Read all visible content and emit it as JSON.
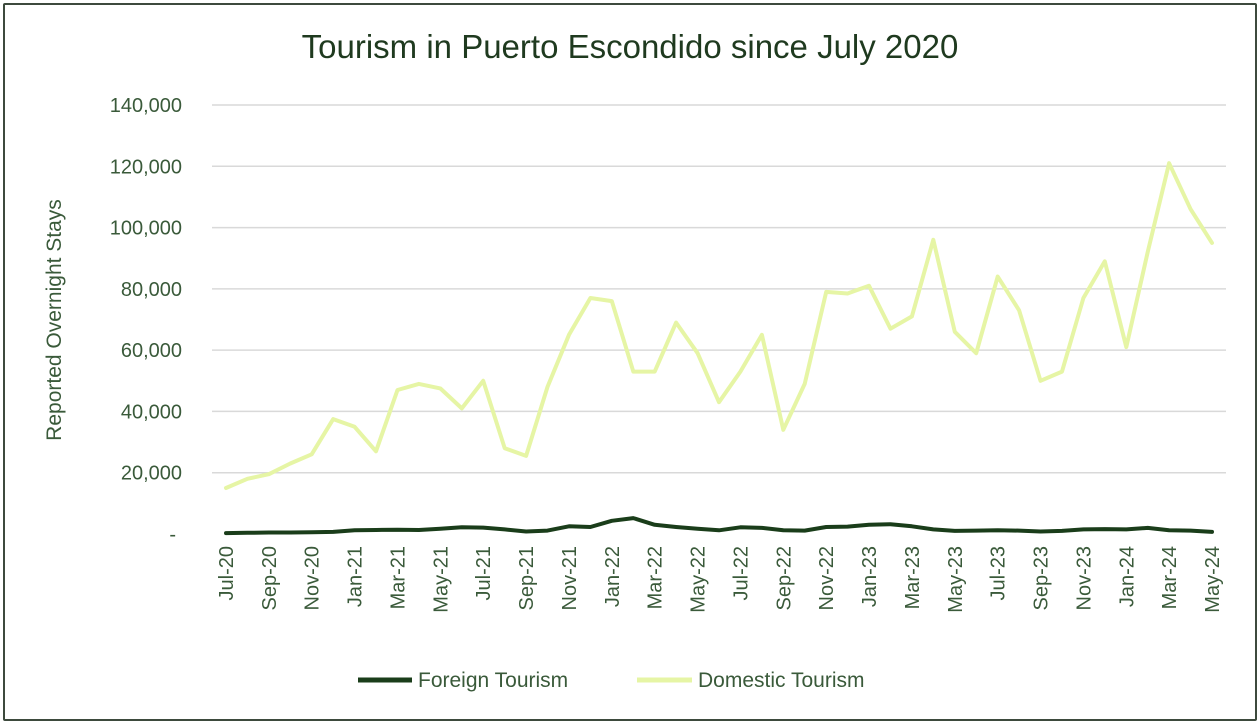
{
  "chart_data": {
    "type": "line",
    "title": "Tourism in Puerto Escondido since July 2020",
    "xlabel": "",
    "ylabel": "Reported Overnight Stays",
    "ylim": [
      0,
      140000
    ],
    "yticks": [
      "-",
      "20,000",
      "40,000",
      "60,000",
      "80,000",
      "100,000",
      "120,000",
      "140,000"
    ],
    "grid": true,
    "legend_position": "bottom",
    "categories": [
      "Jul-20",
      "Aug-20",
      "Sep-20",
      "Oct-20",
      "Nov-20",
      "Dec-20",
      "Jan-21",
      "Feb-21",
      "Mar-21",
      "Apr-21",
      "May-21",
      "Jun-21",
      "Jul-21",
      "Aug-21",
      "Sep-21",
      "Oct-21",
      "Nov-21",
      "Dec-21",
      "Jan-22",
      "Feb-22",
      "Mar-22",
      "Apr-22",
      "May-22",
      "Jun-22",
      "Jul-22",
      "Aug-22",
      "Sep-22",
      "Oct-22",
      "Nov-22",
      "Dec-22",
      "Jan-23",
      "Feb-23",
      "Mar-23",
      "Apr-23",
      "May-23",
      "Jun-23",
      "Jul-23",
      "Aug-23",
      "Sep-23",
      "Oct-23",
      "Nov-23",
      "Dec-23",
      "Jan-24",
      "Feb-24",
      "Mar-24",
      "Apr-24",
      "May-24"
    ],
    "tick_labels": [
      "Jul-20",
      "Sep-20",
      "Nov-20",
      "Jan-21",
      "Mar-21",
      "May-21",
      "Jul-21",
      "Sep-21",
      "Nov-21",
      "Jan-22",
      "Mar-22",
      "May-22",
      "Jul-22",
      "Sep-22",
      "Nov-22",
      "Jan-23",
      "Mar-23",
      "May-23",
      "Jul-23",
      "Sep-23",
      "Nov-23",
      "Jan-24",
      "Mar-24",
      "May-24"
    ],
    "series": [
      {
        "name": "Foreign Tourism",
        "color": "#1a3d1a",
        "values": [
          300,
          400,
          500,
          500,
          600,
          700,
          1200,
          1300,
          1400,
          1300,
          1700,
          2200,
          2100,
          1500,
          800,
          1100,
          2500,
          2300,
          4300,
          5200,
          3000,
          2300,
          1700,
          1200,
          2200,
          2000,
          1200,
          1100,
          2300,
          2400,
          3000,
          3200,
          2500,
          1500,
          1000,
          1100,
          1200,
          1100,
          800,
          1000,
          1500,
          1600,
          1500,
          2000,
          1200,
          1100,
          700
        ]
      },
      {
        "name": "Domestic Tourism",
        "color": "#e6f5a5",
        "values": [
          15000,
          18000,
          19500,
          23000,
          26000,
          37500,
          35000,
          27000,
          47000,
          49000,
          47500,
          41000,
          50000,
          28000,
          25500,
          48000,
          65000,
          77000,
          76000,
          53000,
          53000,
          69000,
          59000,
          43000,
          53000,
          65000,
          34000,
          49000,
          79000,
          78500,
          81000,
          67000,
          71000,
          96000,
          66000,
          59000,
          84000,
          73000,
          50000,
          53000,
          77000,
          89000,
          61000,
          92000,
          121000,
          106000,
          95000
        ]
      }
    ]
  }
}
